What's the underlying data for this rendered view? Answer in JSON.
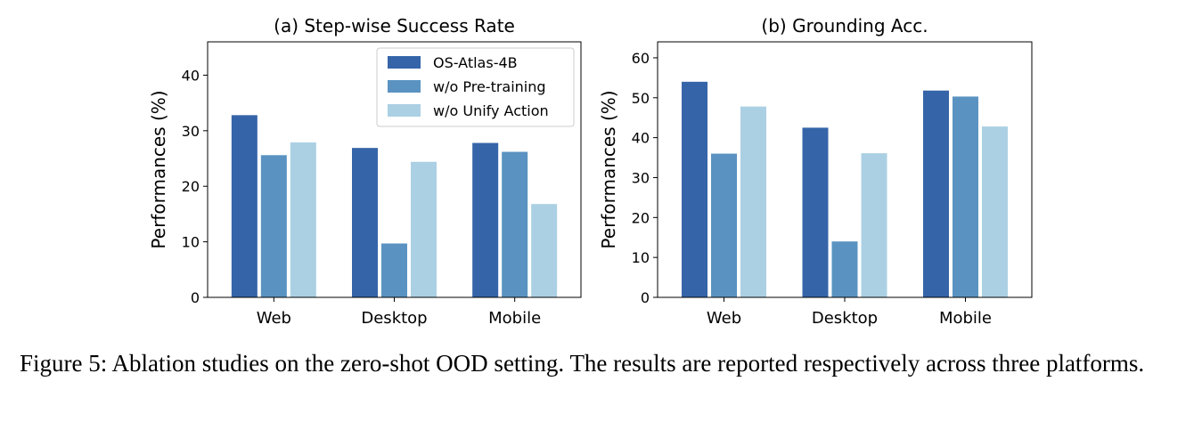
{
  "colors": {
    "series": [
      "#3564a8",
      "#5a93c1",
      "#abd0e3"
    ]
  },
  "chart_data": [
    {
      "type": "bar",
      "title": "(a) Step-wise Success Rate",
      "xlabel": "",
      "ylabel": "Performances (%)",
      "categories": [
        "Web",
        "Desktop",
        "Mobile"
      ],
      "ylim": [
        0,
        46
      ],
      "yticks": [
        0,
        10,
        20,
        30,
        40
      ],
      "legend": "top-right",
      "series": [
        {
          "name": "OS-Atlas-4B",
          "values": [
            32.8,
            26.9,
            27.8
          ]
        },
        {
          "name": "w/o Pre-training",
          "values": [
            25.6,
            9.7,
            26.2
          ]
        },
        {
          "name": "w/o Unify Action",
          "values": [
            27.9,
            24.4,
            16.8
          ]
        }
      ]
    },
    {
      "type": "bar",
      "title": "(b) Grounding Acc.",
      "xlabel": "",
      "ylabel": "Performances (%)",
      "categories": [
        "Web",
        "Desktop",
        "Mobile"
      ],
      "ylim": [
        0,
        64
      ],
      "yticks": [
        0,
        10,
        20,
        30,
        40,
        50,
        60
      ],
      "legend": "none",
      "series": [
        {
          "name": "OS-Atlas-4B",
          "values": [
            54.0,
            42.5,
            51.8
          ]
        },
        {
          "name": "w/o Pre-training",
          "values": [
            36.0,
            14.0,
            50.3
          ]
        },
        {
          "name": "w/o Unify Action",
          "values": [
            47.8,
            36.1,
            42.8
          ]
        }
      ]
    }
  ],
  "caption": "Figure 5: Ablation studies on the zero-shot OOD setting. The results are reported respectively across three platforms."
}
